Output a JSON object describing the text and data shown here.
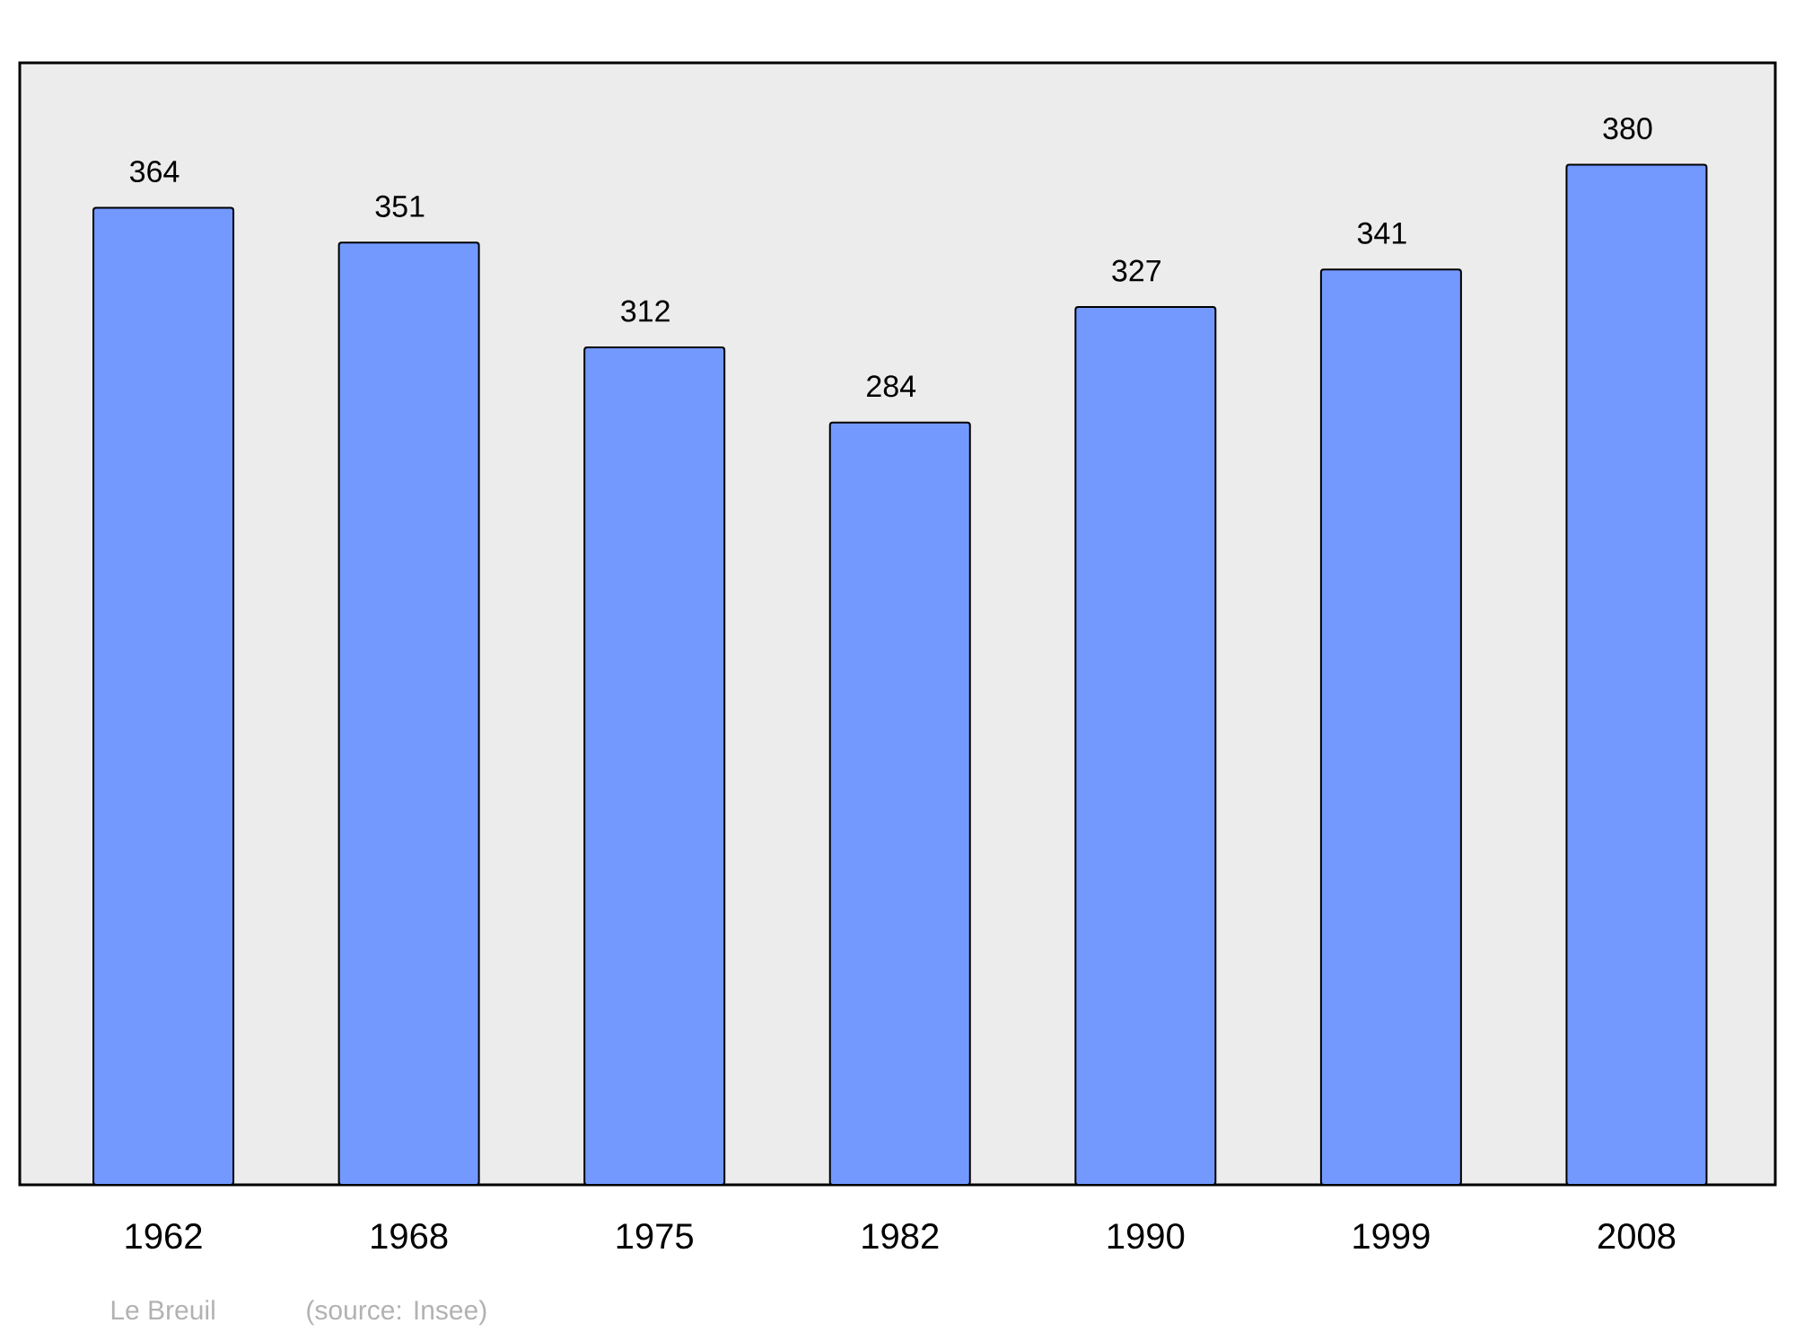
{
  "chart_data": {
    "type": "bar",
    "categories": [
      "1962",
      "1968",
      "1975",
      "1982",
      "1990",
      "1999",
      "2008"
    ],
    "values": [
      364,
      351,
      312,
      284,
      327,
      341,
      380
    ],
    "color": "#7399ff",
    "ylim": [
      0,
      418
    ],
    "data_labels": true,
    "grid": false,
    "tick_labels": "x",
    "annotations": [
      "Le Breuil",
      "(source: Insee)"
    ]
  }
}
